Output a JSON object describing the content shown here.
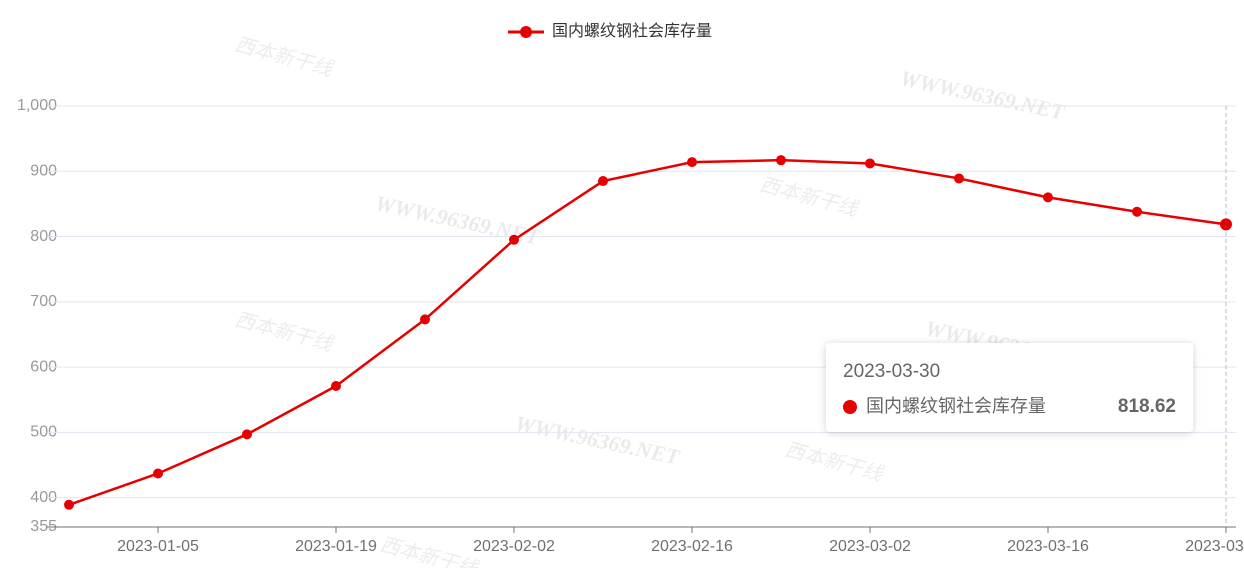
{
  "chart_data": {
    "type": "line",
    "legend_position": "top",
    "watermark": "WWW.96369.NET",
    "watermark_logo": "西本新干线",
    "categories": [
      null,
      "2023-01-05",
      null,
      "2023-01-19",
      null,
      "2023-02-02",
      null,
      "2023-02-16",
      null,
      "2023-03-02",
      null,
      "2023-03-16",
      null,
      "2023-03-30"
    ],
    "series": [
      {
        "name": "国内螺纹钢社会库存量",
        "color": "#e60000",
        "values": [
          389,
          437,
          497,
          571,
          673,
          795,
          885,
          914,
          917,
          912,
          889,
          860,
          838,
          818.62
        ]
      }
    ],
    "ylim": [
      355,
      1000
    ],
    "yticks": [
      355,
      400,
      500,
      600,
      700,
      800,
      900,
      {
        "value": 1000,
        "label": "1,000"
      }
    ],
    "grid": true
  }
}
